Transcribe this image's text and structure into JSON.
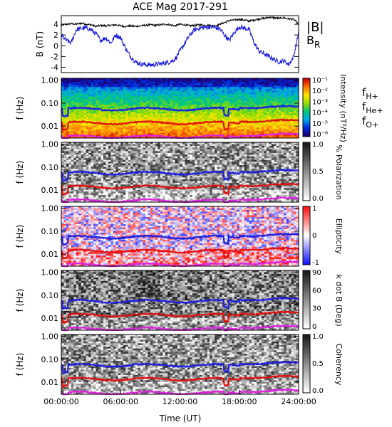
{
  "title": "ACE Mag 2017-291",
  "colors": {
    "B_total": "#000000",
    "B_R": "#1a1adc",
    "f_H": "#1f1fe0",
    "f_He": "#e01010",
    "f_O": "#e020e0"
  },
  "xaxis": {
    "label": "Time (UT)",
    "ticks": [
      "00:00:00",
      "06:00:00",
      "12:00:00",
      "18:00:00",
      "24:00:00"
    ],
    "range_hours": [
      0,
      24
    ]
  },
  "freq_axis": {
    "label": "f (Hz)",
    "ticks": [
      "1.00",
      "0.10",
      "0.01"
    ],
    "scale": "log",
    "range": [
      0.003,
      1.2
    ]
  },
  "legend": {
    "B_total": "|B|",
    "B_R": "B",
    "B_R_sub": "R",
    "f_H_main": "f",
    "f_H_sub": "H+",
    "f_He_main": "f",
    "f_He_sub": "He+",
    "f_O_main": "f",
    "f_O_sub": "O+"
  },
  "panels": [
    {
      "kind": "line",
      "ylabel": "B (nT)",
      "yticks": [
        "4",
        "2",
        "0",
        "-2",
        "-4"
      ],
      "ylim": [
        -5,
        5.6
      ]
    },
    {
      "kind": "spectrogram",
      "palette": "rainbow",
      "ylabel": "f (Hz)",
      "cbar_label": "Intensity (nT²/Hz)",
      "cbar_ticks": [
        "10⁻¹",
        "10⁻²",
        "10⁻³",
        "10⁻⁴",
        "10⁻⁵",
        "10⁻⁶"
      ]
    },
    {
      "kind": "spectrogram",
      "palette": "gray",
      "ylabel": "f (Hz)",
      "cbar_label": "% Polarization",
      "cbar_ticks": [
        "1.0",
        "0.5",
        "0.0"
      ]
    },
    {
      "kind": "spectrogram",
      "palette": "bluered",
      "ylabel": "f (Hz)",
      "cbar_label": "Ellipticity",
      "cbar_ticks": [
        "1",
        "0",
        "-1"
      ]
    },
    {
      "kind": "spectrogram",
      "palette": "gray",
      "ylabel": "f (Hz)",
      "cbar_label": "k dot B (Deg)",
      "cbar_ticks": [
        "90",
        "60",
        "30",
        "0"
      ]
    },
    {
      "kind": "spectrogram",
      "palette": "gray",
      "ylabel": "f (Hz)",
      "cbar_label": "Coherency",
      "cbar_ticks": [
        "1.0",
        "0.5",
        "0.0"
      ]
    }
  ],
  "chart_data": {
    "type": "line",
    "title": "ACE Mag 2017-291",
    "xlabel": "Time (UT)",
    "ylabel": "B (nT)",
    "x_hours": [
      0,
      0.5,
      1,
      1.5,
      2,
      2.5,
      3,
      3.5,
      4,
      4.5,
      5,
      5.5,
      6,
      6.5,
      7,
      7.5,
      8,
      8.5,
      9,
      9.5,
      10,
      10.5,
      11,
      11.5,
      12,
      12.5,
      13,
      13.5,
      14,
      14.5,
      15,
      15.5,
      16,
      16.5,
      17,
      17.5,
      18,
      18.5,
      19,
      19.5,
      20,
      20.5,
      21,
      21.5,
      22,
      22.5,
      23,
      23.5,
      24
    ],
    "series": [
      {
        "name": "|B|",
        "values": [
          3.8,
          4.0,
          4.1,
          4.0,
          4.2,
          4.0,
          3.9,
          3.6,
          3.8,
          3.7,
          3.8,
          3.9,
          3.7,
          3.6,
          3.7,
          3.6,
          3.7,
          3.8,
          3.9,
          3.8,
          3.9,
          4.0,
          3.9,
          3.7,
          4.0,
          3.9,
          3.7,
          3.8,
          3.9,
          3.8,
          3.8,
          3.7,
          4.0,
          4.3,
          4.7,
          4.8,
          4.9,
          4.8,
          4.6,
          4.8,
          5.0,
          5.1,
          5.3,
          5.2,
          5.1,
          5.2,
          5.0,
          4.9,
          4.0
        ]
      },
      {
        "name": "B_R",
        "values": [
          2.0,
          1.0,
          0.5,
          3.0,
          3.2,
          3.3,
          3.0,
          2.2,
          1.0,
          1.5,
          0.5,
          2.0,
          1.5,
          -0.5,
          -2.0,
          -3.0,
          -3.4,
          -3.5,
          -3.6,
          -3.5,
          -3.4,
          -3.2,
          -3.0,
          -2.5,
          -1.0,
          0.5,
          2.0,
          3.0,
          3.3,
          3.4,
          3.5,
          3.4,
          3.2,
          2.0,
          1.0,
          2.5,
          3.5,
          3.3,
          3.0,
          0.5,
          -1.0,
          -1.5,
          -2.0,
          -2.5,
          -3.0,
          -2.8,
          -3.5,
          -2.0,
          2.5
        ]
      }
    ],
    "ylim": [
      -5,
      5.6
    ],
    "grid": false
  }
}
